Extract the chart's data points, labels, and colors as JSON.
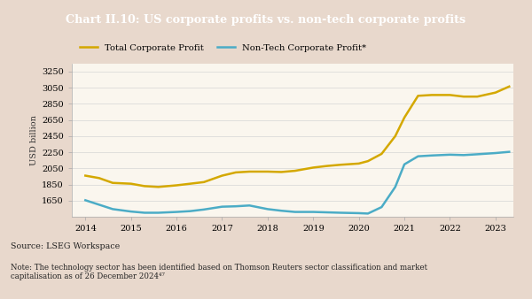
{
  "title": "Chart II.10: US corporate profits vs. non-tech corporate profits",
  "title_bg_color": "#a05050",
  "title_text_color": "#ffffff",
  "chart_bg_color": "#faf6ee",
  "outer_bg_color": "#e8d8cc",
  "ylabel": "USD billion",
  "ylim": [
    1450,
    3350
  ],
  "yticks": [
    1650,
    1850,
    2050,
    2250,
    2450,
    2650,
    2850,
    3050,
    3250
  ],
  "xlim": [
    2013.7,
    2023.4
  ],
  "xticks": [
    2014,
    2015,
    2016,
    2017,
    2018,
    2019,
    2020,
    2021,
    2022,
    2023
  ],
  "source_text": "Source: LSEG Workspace",
  "note_text": "Note: The technology sector has been identified based on Thomson Reuters sector classification and market\ncapitalisation as of 26 December 2024⁴⁷",
  "total_profit": {
    "label": "Total Corporate Profit",
    "color": "#d4a800",
    "x": [
      2014.0,
      2014.3,
      2014.6,
      2015.0,
      2015.3,
      2015.6,
      2016.0,
      2016.3,
      2016.6,
      2017.0,
      2017.3,
      2017.6,
      2018.0,
      2018.3,
      2018.6,
      2019.0,
      2019.3,
      2019.6,
      2020.0,
      2020.2,
      2020.5,
      2020.8,
      2021.0,
      2021.3,
      2021.6,
      2022.0,
      2022.3,
      2022.6,
      2023.0,
      2023.3
    ],
    "y": [
      1960,
      1930,
      1870,
      1860,
      1830,
      1820,
      1840,
      1860,
      1880,
      1960,
      2000,
      2010,
      2010,
      2005,
      2020,
      2060,
      2080,
      2095,
      2110,
      2140,
      2230,
      2450,
      2680,
      2950,
      2960,
      2960,
      2940,
      2940,
      2990,
      3065
    ]
  },
  "nontech_profit": {
    "label": "Non-Tech Corporate Profit*",
    "color": "#4bacc6",
    "x": [
      2014.0,
      2014.3,
      2014.6,
      2015.0,
      2015.3,
      2015.6,
      2016.0,
      2016.3,
      2016.6,
      2017.0,
      2017.3,
      2017.6,
      2018.0,
      2018.3,
      2018.6,
      2019.0,
      2019.3,
      2019.6,
      2020.0,
      2020.2,
      2020.5,
      2020.8,
      2021.0,
      2021.3,
      2021.6,
      2022.0,
      2022.3,
      2022.6,
      2023.0,
      2023.3
    ],
    "y": [
      1655,
      1600,
      1545,
      1515,
      1500,
      1500,
      1510,
      1520,
      1540,
      1575,
      1580,
      1590,
      1545,
      1525,
      1510,
      1510,
      1505,
      1500,
      1495,
      1490,
      1570,
      1820,
      2100,
      2200,
      2210,
      2220,
      2215,
      2225,
      2240,
      2255
    ]
  }
}
